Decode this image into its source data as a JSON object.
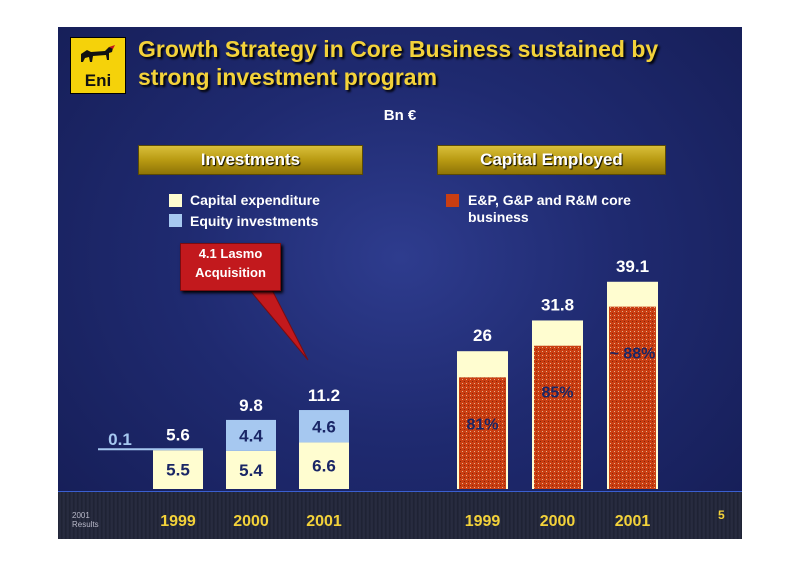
{
  "title": "Growth Strategy in Core Business sustained by strong investment program",
  "logo_text": "Eni",
  "unit": "Bn €",
  "page_number": "5",
  "footer_left": [
    "2001",
    "Results"
  ],
  "colors": {
    "capex": "#fffdd0",
    "equity": "#a6c8f0",
    "core": "#c93e12",
    "title": "#f3d23a",
    "value_dark": "#1a2666",
    "value_light": "#ffffff"
  },
  "callout": [
    "4.1 Lasmo",
    "Acquisition"
  ],
  "chart_data": [
    {
      "type": "bar",
      "title": "Investments",
      "categories": [
        "1999",
        "2000",
        "2001"
      ],
      "series": [
        {
          "name": "Capital expenditure",
          "values": [
            5.5,
            5.4,
            6.6
          ]
        },
        {
          "name": "Equity investments",
          "values": [
            0.1,
            4.4,
            4.6
          ]
        }
      ],
      "totals": [
        5.6,
        9.8,
        11.2
      ],
      "equity_1999_label": "0.1",
      "labels": {
        "capex": [
          "5.5",
          "5.4",
          "6.6"
        ],
        "equity": [
          "",
          "4.4",
          "4.6"
        ],
        "totals": [
          "5.6",
          "9.8",
          "11.2"
        ]
      },
      "legend": [
        "Capital expenditure",
        "Equity investments"
      ]
    },
    {
      "type": "bar",
      "title": "Capital Employed",
      "categories": [
        "1999",
        "2000",
        "2001"
      ],
      "values": [
        26,
        31.8,
        39.1
      ],
      "core_share": [
        81,
        85,
        88
      ],
      "labels": {
        "totals": [
          "26",
          "31.8",
          "39.1"
        ],
        "share": [
          "81%",
          "85%",
          "~ 88%"
        ]
      },
      "legend": [
        "E&P, G&P and R&M core business"
      ]
    }
  ]
}
